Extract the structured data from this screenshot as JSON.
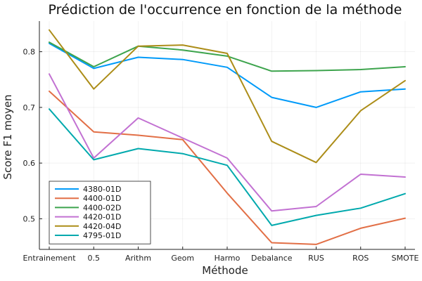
{
  "chart_data": {
    "type": "line",
    "title": "Prédiction de l'occurrence en fonction de la méthode",
    "xlabel": "Méthode",
    "ylabel": "Score F1 moyen",
    "categories": [
      "Entrainement",
      "0.5",
      "Arithm",
      "Geom",
      "Harmo",
      "Debalance",
      "RUS",
      "ROS",
      "SMOTE"
    ],
    "ylim": [
      0.445,
      0.855
    ],
    "yticks": [
      0.5,
      0.6,
      0.7,
      0.8
    ],
    "ytick_labels": [
      "0.5",
      "0.6",
      "0.7",
      "0.8"
    ],
    "grid": true,
    "legend_position": "bottom-left",
    "series": [
      {
        "name": "4380-01D",
        "color": "#009af9",
        "values": [
          0.815,
          0.77,
          0.79,
          0.786,
          0.772,
          0.718,
          0.7,
          0.728,
          0.733
        ]
      },
      {
        "name": "4400-01D",
        "color": "#e26f46",
        "values": [
          0.729,
          0.656,
          0.65,
          0.642,
          0.546,
          0.457,
          0.454,
          0.483,
          0.501
        ]
      },
      {
        "name": "4400-02D",
        "color": "#3da44d",
        "values": [
          0.817,
          0.773,
          0.81,
          0.803,
          0.792,
          0.765,
          0.766,
          0.768,
          0.773
        ]
      },
      {
        "name": "4420-01D",
        "color": "#c271d2",
        "values": [
          0.76,
          0.609,
          0.681,
          0.645,
          0.609,
          0.514,
          0.522,
          0.58,
          0.575
        ]
      },
      {
        "name": "4420-04D",
        "color": "#ac8d18",
        "values": [
          0.839,
          0.733,
          0.81,
          0.812,
          0.797,
          0.639,
          0.601,
          0.694,
          0.748
        ]
      },
      {
        "name": "4795-01D",
        "color": "#00a9ad",
        "values": [
          0.697,
          0.606,
          0.626,
          0.617,
          0.596,
          0.488,
          0.506,
          0.519,
          0.545
        ]
      }
    ]
  }
}
